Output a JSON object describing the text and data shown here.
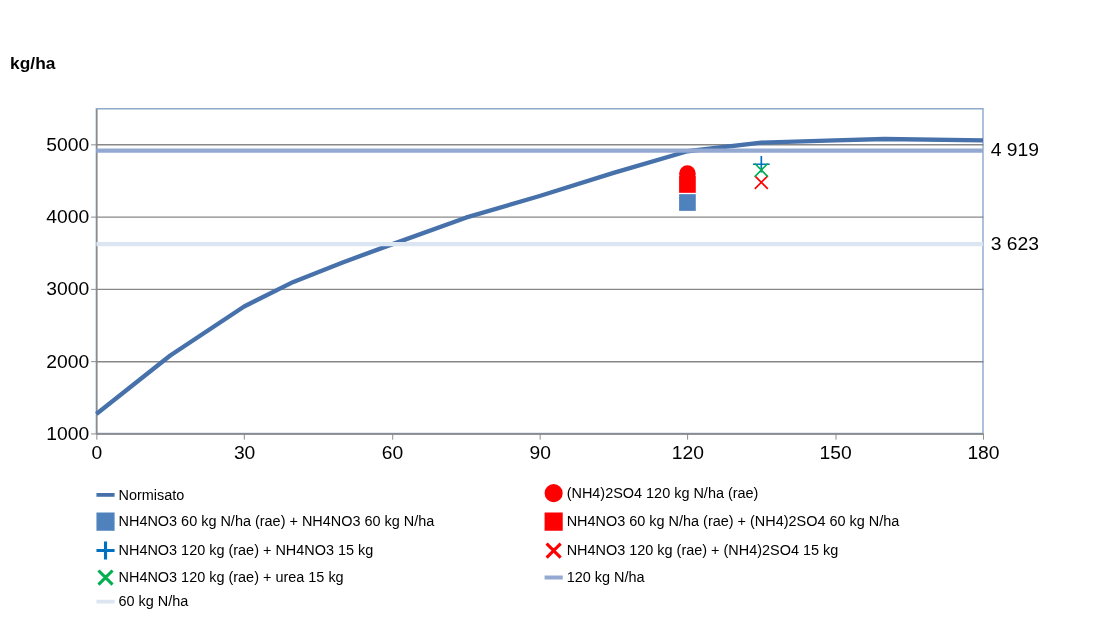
{
  "chart_data": {
    "type": "line",
    "ylabel": "kg/ha",
    "xlim": [
      0,
      180
    ],
    "xticks": [
      0,
      30,
      60,
      90,
      120,
      150,
      180
    ],
    "ylim": [
      1000,
      5500
    ],
    "yticks": [
      1000,
      2000,
      3000,
      4000,
      5000
    ],
    "grid": "y",
    "legend": "bottom",
    "line_style": "solid",
    "series": [
      {
        "name": "Normisato",
        "type": "line",
        "marker": "none",
        "color": "#4671aa",
        "x": [
          0,
          15,
          30,
          40,
          50,
          60,
          75,
          90,
          105,
          120,
          135,
          150,
          160,
          180
        ],
        "values": [
          1270,
          2080,
          2760,
          3100,
          3370,
          3620,
          3990,
          4290,
          4610,
          4910,
          5030,
          5060,
          5080,
          5060
        ]
      },
      {
        "name": "(NH4)2SO4 120 kg N/ha (rae)",
        "type": "scatter",
        "marker": "circle",
        "color": "#ff0000",
        "x": [
          120
        ],
        "values": [
          4600
        ]
      },
      {
        "name": "NH4NO3 60 kg N/ha (rae) + NH4NO3 60 kg N/ha",
        "type": "scatter",
        "marker": "square",
        "color": "#4f81bd",
        "x": [
          120
        ],
        "values": [
          4200
        ]
      },
      {
        "name": "NH4NO3 60 kg N/ha (rae) + (NH4)2SO4 60 kg N/ha",
        "type": "scatter",
        "marker": "square",
        "color": "#ff0000",
        "x": [
          120
        ],
        "values": [
          4450
        ]
      },
      {
        "name": "NH4NO3 120 kg (rae) + NH4NO3 15 kg",
        "type": "scatter",
        "marker": "cross",
        "color": "#0070c0",
        "x": [
          135
        ],
        "values": [
          4730
        ]
      },
      {
        "name": "NH4NO3 120 kg (rae) + (NH4)2SO4 15 kg",
        "type": "scatter",
        "marker": "x",
        "color": "#ff0000",
        "x": [
          135
        ],
        "values": [
          4480
        ]
      },
      {
        "name": "NH4NO3 120 kg (rae) + urea 15 kg",
        "type": "scatter",
        "marker": "x",
        "color": "#00b050",
        "x": [
          135
        ],
        "values": [
          4650
        ]
      },
      {
        "name": "120 kg N/ha",
        "type": "line",
        "marker": "none",
        "color": "#93a9d1",
        "x": [
          0,
          180
        ],
        "values": [
          4919,
          4919
        ]
      },
      {
        "name": "60 kg N/ha",
        "type": "line",
        "marker": "none",
        "color": "#dce6f2",
        "x": [
          0,
          180
        ],
        "values": [
          3623,
          3623
        ]
      }
    ],
    "annotations": [
      {
        "text": "4 919",
        "x": 180,
        "y": 4919
      },
      {
        "text": "3 623",
        "x": 180,
        "y": 3623
      }
    ]
  }
}
